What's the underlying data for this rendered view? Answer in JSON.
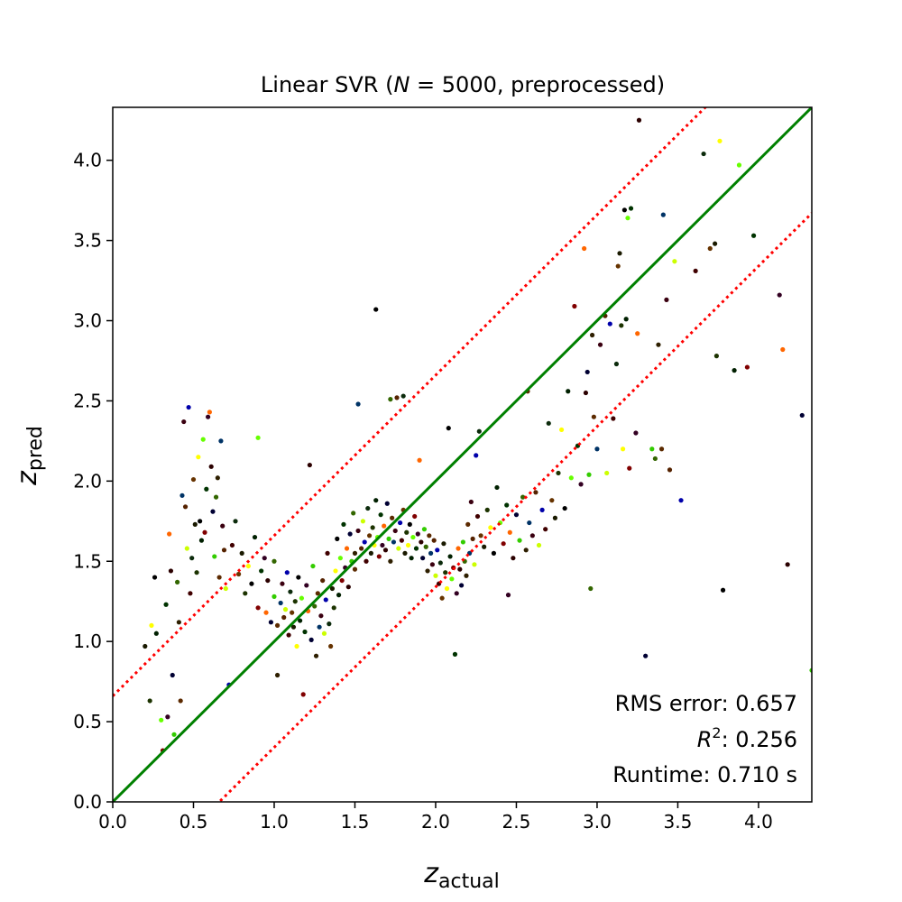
{
  "chart_data": {
    "type": "scatter",
    "title": {
      "prefix": "Linear SVR (",
      "italic": "N",
      "suffix": " = 5000, preprocessed)"
    },
    "xlabel": {
      "main": "z",
      "sub": "actual"
    },
    "ylabel": {
      "main": "z",
      "sub": "pred"
    },
    "xlim": [
      0.0,
      4.33
    ],
    "ylim": [
      0.0,
      4.33
    ],
    "xticks": [
      "0.0",
      "0.5",
      "1.0",
      "1.5",
      "2.0",
      "2.5",
      "3.0",
      "3.5",
      "4.0"
    ],
    "yticks": [
      "0.0",
      "0.5",
      "1.0",
      "1.5",
      "2.0",
      "2.5",
      "3.0",
      "3.5",
      "4.0"
    ],
    "grid": false,
    "reference_lines": [
      {
        "name": "identity",
        "slope": 1,
        "intercept": 0,
        "color": "#008000",
        "style": "solid"
      },
      {
        "name": "upper bound",
        "slope": 1,
        "intercept": 0.66,
        "color": "#ff0000",
        "style": "dotted"
      },
      {
        "name": "lower bound",
        "slope": 1,
        "intercept": -0.66,
        "color": "#ff0000",
        "style": "dotted"
      }
    ],
    "stats": {
      "rms": "RMS error: 0.657",
      "r2_label": "R",
      "r2_sup": "2",
      "r2_value": ": 0.256",
      "runtime": "Runtime: 0.710 s"
    },
    "points": [
      [
        0.2,
        0.97
      ],
      [
        0.23,
        0.63
      ],
      [
        0.24,
        1.1
      ],
      [
        0.26,
        1.4
      ],
      [
        0.27,
        1.05
      ],
      [
        0.3,
        0.51
      ],
      [
        0.31,
        0.32
      ],
      [
        0.33,
        1.23
      ],
      [
        0.34,
        0.53
      ],
      [
        0.35,
        1.67
      ],
      [
        0.36,
        1.44
      ],
      [
        0.37,
        0.79
      ],
      [
        0.38,
        0.42
      ],
      [
        0.4,
        1.37
      ],
      [
        0.41,
        1.12
      ],
      [
        0.42,
        0.63
      ],
      [
        0.43,
        1.91
      ],
      [
        0.44,
        2.37
      ],
      [
        0.45,
        1.84
      ],
      [
        0.46,
        1.58
      ],
      [
        0.47,
        2.46
      ],
      [
        0.48,
        1.3
      ],
      [
        0.49,
        1.52
      ],
      [
        0.5,
        2.01
      ],
      [
        0.51,
        1.73
      ],
      [
        0.52,
        1.43
      ],
      [
        0.53,
        2.15
      ],
      [
        0.54,
        1.75
      ],
      [
        0.55,
        1.63
      ],
      [
        0.56,
        2.26
      ],
      [
        0.57,
        1.68
      ],
      [
        0.58,
        1.95
      ],
      [
        0.59,
        2.4
      ],
      [
        0.6,
        2.43
      ],
      [
        0.61,
        2.09
      ],
      [
        0.62,
        1.81
      ],
      [
        0.63,
        1.53
      ],
      [
        0.64,
        1.9
      ],
      [
        0.65,
        2.02
      ],
      [
        0.66,
        1.4
      ],
      [
        0.67,
        2.25
      ],
      [
        0.68,
        1.72
      ],
      [
        0.69,
        1.57
      ],
      [
        0.7,
        1.33
      ],
      [
        0.72,
        0.73
      ],
      [
        0.74,
        1.6
      ],
      [
        0.76,
        1.75
      ],
      [
        0.78,
        1.42
      ],
      [
        0.8,
        1.55
      ],
      [
        0.82,
        1.3
      ],
      [
        0.84,
        1.47
      ],
      [
        0.86,
        1.36
      ],
      [
        0.88,
        1.65
      ],
      [
        0.9,
        2.27
      ],
      [
        0.9,
        1.21
      ],
      [
        0.92,
        1.44
      ],
      [
        0.94,
        1.52
      ],
      [
        0.95,
        1.18
      ],
      [
        0.96,
        1.38
      ],
      [
        0.98,
        1.12
      ],
      [
        1.0,
        1.28
      ],
      [
        1.0,
        1.5
      ],
      [
        1.02,
        0.79
      ],
      [
        1.02,
        1.1
      ],
      [
        1.04,
        1.24
      ],
      [
        1.05,
        1.36
      ],
      [
        1.06,
        1.15
      ],
      [
        1.07,
        1.2
      ],
      [
        1.08,
        1.43
      ],
      [
        1.09,
        1.04
      ],
      [
        1.1,
        1.31
      ],
      [
        1.11,
        1.18
      ],
      [
        1.12,
        1.09
      ],
      [
        1.13,
        1.25
      ],
      [
        1.14,
        0.97
      ],
      [
        1.15,
        1.4
      ],
      [
        1.16,
        1.13
      ],
      [
        1.17,
        1.27
      ],
      [
        1.18,
        0.67
      ],
      [
        1.19,
        1.06
      ],
      [
        1.2,
        1.35
      ],
      [
        1.21,
        1.19
      ],
      [
        1.22,
        2.1
      ],
      [
        1.23,
        1.01
      ],
      [
        1.24,
        1.47
      ],
      [
        1.25,
        1.22
      ],
      [
        1.26,
        0.91
      ],
      [
        1.27,
        1.3
      ],
      [
        1.28,
        1.09
      ],
      [
        1.29,
        1.16
      ],
      [
        1.3,
        1.38
      ],
      [
        1.31,
        1.05
      ],
      [
        1.32,
        1.26
      ],
      [
        1.33,
        1.55
      ],
      [
        1.34,
        1.11
      ],
      [
        1.35,
        0.97
      ],
      [
        1.36,
        1.33
      ],
      [
        1.37,
        1.21
      ],
      [
        1.38,
        1.44
      ],
      [
        1.39,
        1.64
      ],
      [
        1.4,
        1.29
      ],
      [
        1.41,
        1.52
      ],
      [
        1.42,
        1.38
      ],
      [
        1.43,
        1.73
      ],
      [
        1.44,
        1.46
      ],
      [
        1.45,
        1.58
      ],
      [
        1.46,
        1.34
      ],
      [
        1.47,
        1.67
      ],
      [
        1.48,
        1.5
      ],
      [
        1.49,
        1.8
      ],
      [
        1.5,
        1.55
      ],
      [
        1.5,
        1.45
      ],
      [
        1.52,
        2.48
      ],
      [
        1.52,
        1.69
      ],
      [
        1.54,
        1.58
      ],
      [
        1.55,
        1.75
      ],
      [
        1.56,
        1.62
      ],
      [
        1.57,
        1.5
      ],
      [
        1.58,
        1.83
      ],
      [
        1.59,
        1.66
      ],
      [
        1.6,
        1.55
      ],
      [
        1.61,
        1.71
      ],
      [
        1.62,
        1.6
      ],
      [
        1.63,
        3.07
      ],
      [
        1.63,
        1.88
      ],
      [
        1.64,
        1.65
      ],
      [
        1.65,
        1.53
      ],
      [
        1.66,
        1.79
      ],
      [
        1.67,
        1.6
      ],
      [
        1.68,
        1.72
      ],
      [
        1.69,
        1.57
      ],
      [
        1.7,
        1.86
      ],
      [
        1.71,
        1.64
      ],
      [
        1.72,
        2.51
      ],
      [
        1.72,
        1.5
      ],
      [
        1.73,
        1.77
      ],
      [
        1.74,
        1.62
      ],
      [
        1.75,
        1.69
      ],
      [
        1.76,
        2.52
      ],
      [
        1.77,
        1.58
      ],
      [
        1.78,
        1.74
      ],
      [
        1.79,
        1.63
      ],
      [
        1.8,
        2.53
      ],
      [
        1.8,
        1.82
      ],
      [
        1.81,
        1.55
      ],
      [
        1.82,
        1.68
      ],
      [
        1.83,
        1.6
      ],
      [
        1.84,
        1.73
      ],
      [
        1.85,
        1.52
      ],
      [
        1.86,
        1.65
      ],
      [
        1.87,
        1.78
      ],
      [
        1.88,
        1.58
      ],
      [
        1.89,
        1.67
      ],
      [
        1.9,
        2.13
      ],
      [
        1.91,
        1.62
      ],
      [
        1.92,
        1.52
      ],
      [
        1.93,
        1.7
      ],
      [
        1.94,
        1.59
      ],
      [
        1.95,
        1.44
      ],
      [
        1.96,
        1.66
      ],
      [
        1.97,
        1.55
      ],
      [
        1.98,
        1.48
      ],
      [
        1.99,
        1.63
      ],
      [
        2.0,
        1.41
      ],
      [
        2.01,
        1.57
      ],
      [
        2.02,
        1.36
      ],
      [
        2.03,
        1.49
      ],
      [
        2.04,
        1.27
      ],
      [
        2.05,
        1.61
      ],
      [
        2.06,
        1.43
      ],
      [
        2.07,
        1.33
      ],
      [
        2.08,
        2.33
      ],
      [
        2.09,
        1.53
      ],
      [
        2.1,
        1.39
      ],
      [
        2.11,
        1.46
      ],
      [
        2.12,
        0.92
      ],
      [
        2.13,
        1.3
      ],
      [
        2.14,
        1.58
      ],
      [
        2.15,
        1.45
      ],
      [
        2.16,
        1.35
      ],
      [
        2.17,
        1.62
      ],
      [
        2.18,
        1.5
      ],
      [
        2.19,
        1.41
      ],
      [
        2.2,
        1.73
      ],
      [
        2.21,
        1.55
      ],
      [
        2.22,
        1.87
      ],
      [
        2.23,
        1.64
      ],
      [
        2.24,
        1.48
      ],
      [
        2.25,
        2.16
      ],
      [
        2.26,
        1.78
      ],
      [
        2.27,
        2.31
      ],
      [
        2.28,
        1.66
      ],
      [
        2.3,
        1.59
      ],
      [
        2.32,
        1.82
      ],
      [
        2.34,
        1.71
      ],
      [
        2.36,
        1.55
      ],
      [
        2.38,
        1.96
      ],
      [
        2.4,
        1.74
      ],
      [
        2.42,
        1.61
      ],
      [
        2.44,
        1.85
      ],
      [
        2.45,
        1.29
      ],
      [
        2.46,
        1.68
      ],
      [
        2.48,
        1.52
      ],
      [
        2.5,
        1.79
      ],
      [
        2.52,
        1.63
      ],
      [
        2.54,
        1.9
      ],
      [
        2.56,
        1.57
      ],
      [
        2.57,
        2.56
      ],
      [
        2.58,
        1.74
      ],
      [
        2.6,
        1.66
      ],
      [
        2.62,
        1.93
      ],
      [
        2.64,
        1.6
      ],
      [
        2.66,
        1.82
      ],
      [
        2.68,
        1.7
      ],
      [
        2.7,
        2.36
      ],
      [
        2.72,
        1.88
      ],
      [
        2.74,
        1.77
      ],
      [
        2.76,
        2.05
      ],
      [
        2.78,
        2.32
      ],
      [
        2.8,
        1.83
      ],
      [
        2.82,
        2.56
      ],
      [
        2.84,
        2.02
      ],
      [
        2.86,
        3.09
      ],
      [
        2.88,
        2.22
      ],
      [
        2.9,
        1.98
      ],
      [
        2.92,
        3.45
      ],
      [
        2.93,
        2.55
      ],
      [
        2.94,
        2.68
      ],
      [
        2.95,
        2.04
      ],
      [
        2.96,
        1.33
      ],
      [
        2.97,
        2.91
      ],
      [
        2.98,
        2.4
      ],
      [
        3.0,
        2.2
      ],
      [
        3.02,
        2.85
      ],
      [
        3.05,
        3.03
      ],
      [
        3.06,
        2.05
      ],
      [
        3.08,
        2.98
      ],
      [
        3.1,
        2.39
      ],
      [
        3.12,
        2.73
      ],
      [
        3.13,
        3.34
      ],
      [
        3.14,
        3.42
      ],
      [
        3.15,
        2.97
      ],
      [
        3.16,
        2.2
      ],
      [
        3.17,
        3.69
      ],
      [
        3.18,
        3.01
      ],
      [
        3.19,
        3.64
      ],
      [
        3.2,
        2.08
      ],
      [
        3.21,
        3.7
      ],
      [
        3.24,
        2.3
      ],
      [
        3.25,
        2.92
      ],
      [
        3.26,
        4.25
      ],
      [
        3.3,
        0.91
      ],
      [
        3.34,
        2.2
      ],
      [
        3.36,
        2.14
      ],
      [
        3.38,
        2.85
      ],
      [
        3.4,
        2.2
      ],
      [
        3.41,
        3.66
      ],
      [
        3.43,
        3.13
      ],
      [
        3.45,
        2.07
      ],
      [
        3.48,
        3.37
      ],
      [
        3.52,
        1.88
      ],
      [
        3.61,
        3.31
      ],
      [
        3.66,
        4.04
      ],
      [
        3.7,
        3.45
      ],
      [
        3.73,
        3.48
      ],
      [
        3.74,
        2.78
      ],
      [
        3.76,
        4.12
      ],
      [
        3.78,
        1.32
      ],
      [
        3.85,
        2.69
      ],
      [
        3.88,
        3.97
      ],
      [
        3.93,
        2.71
      ],
      [
        3.97,
        3.53
      ],
      [
        4.13,
        3.16
      ],
      [
        4.15,
        2.82
      ],
      [
        4.18,
        1.48
      ],
      [
        4.27,
        2.41
      ],
      [
        4.33,
        0.82
      ]
    ],
    "point_colors": [
      "#000000",
      "#2b0000",
      "#3a0010",
      "#1a1a00",
      "#003300",
      "#2e1f00",
      "#400000",
      "#002000",
      "#000033",
      "#552200",
      "#1c3300",
      "#330022",
      "#5c2a00",
      "#0c2b0c",
      "#66ff00",
      "#33cc00",
      "#ccff00",
      "#ffff00",
      "#ff6600",
      "#003366",
      "#663300",
      "#800000",
      "#336600",
      "#0000aa"
    ]
  }
}
